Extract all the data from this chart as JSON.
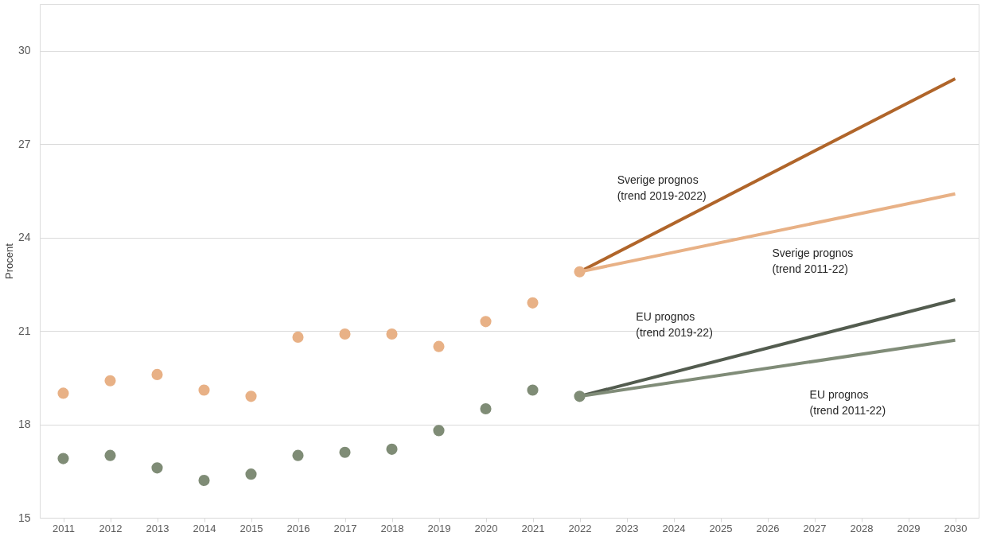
{
  "chart_data": {
    "type": "scatter",
    "ylabel": "Procent",
    "xlim": [
      2010.5,
      2030.5
    ],
    "xticks": [
      2011,
      2012,
      2013,
      2014,
      2015,
      2016,
      2017,
      2018,
      2019,
      2020,
      2021,
      2022,
      2023,
      2024,
      2025,
      2026,
      2027,
      2028,
      2029,
      2030
    ],
    "ylim": [
      15,
      31.5
    ],
    "yticks": [
      15,
      18,
      21,
      24,
      27,
      30
    ],
    "grid": "y",
    "marker": "circle",
    "series": [
      {
        "color": "#e8b186",
        "x": [
          2011,
          2012,
          2013,
          2014,
          2015,
          2016,
          2017,
          2018,
          2019,
          2020,
          2021,
          2022
        ],
        "values": [
          19.0,
          19.4,
          19.6,
          19.1,
          18.9,
          20.8,
          20.9,
          20.9,
          20.5,
          21.3,
          21.9,
          22.9
        ]
      },
      {
        "color": "#7f8c76",
        "x": [
          2011,
          2012,
          2013,
          2014,
          2015,
          2016,
          2017,
          2018,
          2019,
          2020,
          2021,
          2022
        ],
        "values": [
          16.9,
          17.0,
          16.6,
          16.2,
          16.4,
          17.0,
          17.1,
          17.2,
          17.8,
          18.5,
          19.1,
          18.9
        ]
      },
      {
        "type": "line",
        "marker": "none",
        "line_style": "solid",
        "name": "Sverige prognos\n(trend 2019-2022)",
        "color": "#b0652a",
        "x": [
          2022,
          2030
        ],
        "values": [
          22.9,
          29.1
        ]
      },
      {
        "type": "line",
        "marker": "none",
        "line_style": "solid",
        "name": "Sverige prognos\n(trend 2011-22)",
        "color": "#e8b186",
        "x": [
          2022,
          2030
        ],
        "values": [
          22.9,
          25.4
        ]
      },
      {
        "type": "line",
        "marker": "none",
        "line_style": "solid",
        "name": "EU prognos\n(trend 2019-22)",
        "color": "#535c4f",
        "x": [
          2022,
          2030
        ],
        "values": [
          18.9,
          22.0
        ]
      },
      {
        "type": "line",
        "marker": "none",
        "line_style": "solid",
        "name": "EU prognos\n(trend 2011-22)",
        "color": "#808c78",
        "x": [
          2022,
          2030
        ],
        "values": [
          18.9,
          20.7
        ]
      }
    ]
  }
}
